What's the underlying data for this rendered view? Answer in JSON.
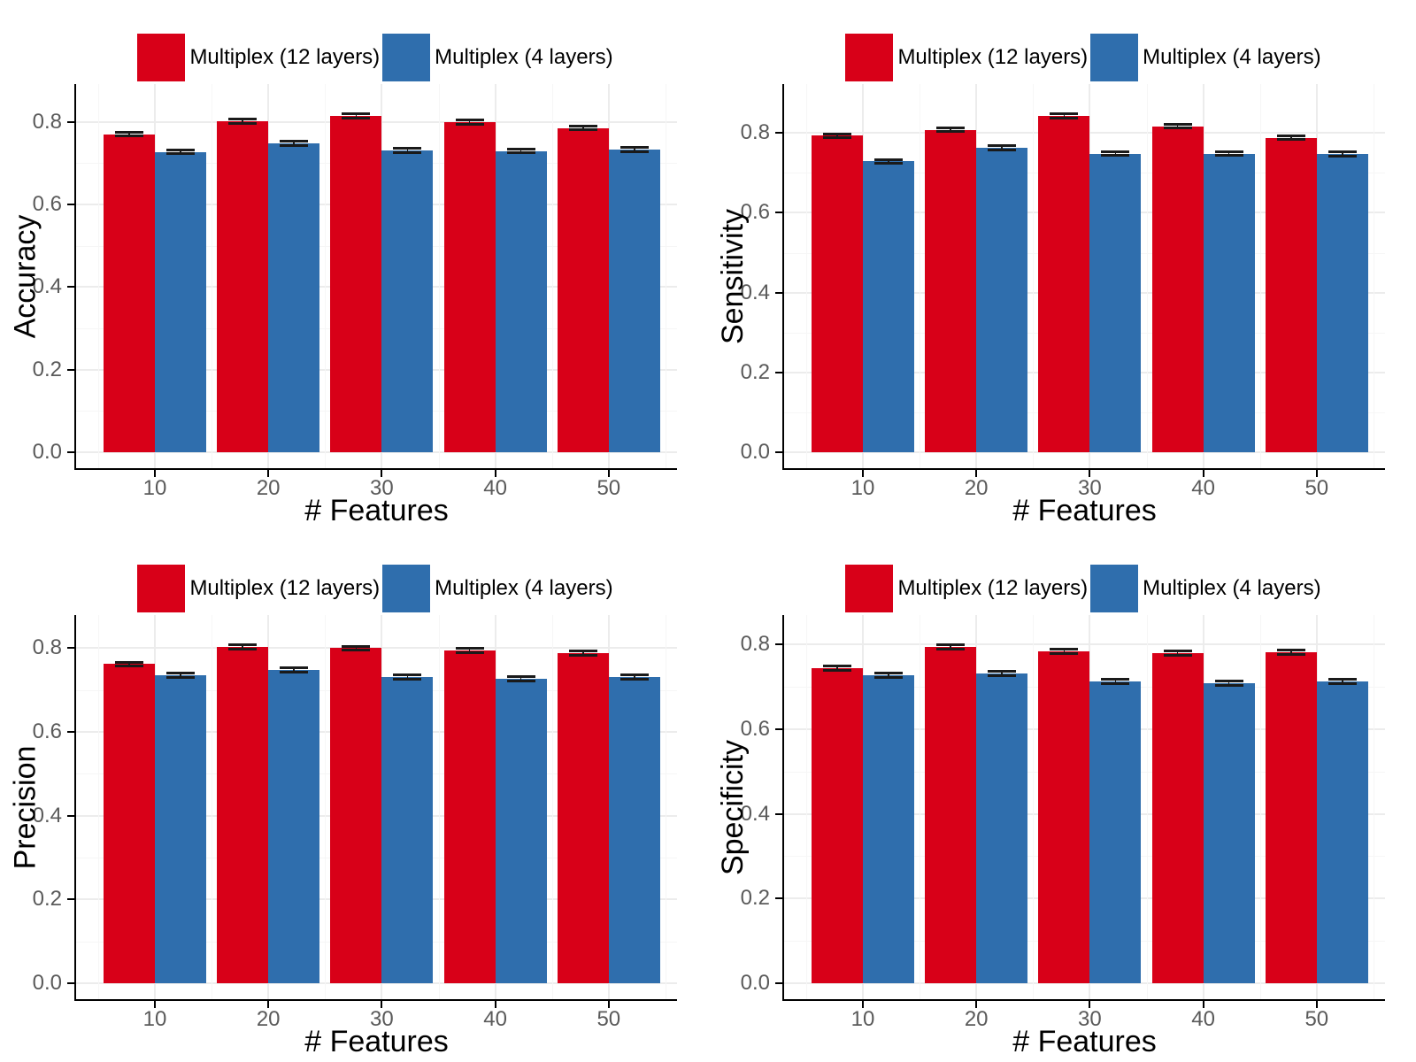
{
  "figure": {
    "background": "#ffffff",
    "axis_line_color": "#000000",
    "axis_text_color": "#5a5a5a",
    "grid_major_color": "#ececec",
    "grid_minor_color": "#f6f6f6",
    "error_bar_color": "#1a1a1a",
    "series_colors": {
      "multiplex_12": "#d80018",
      "multiplex_4": "#2f6ead"
    }
  },
  "legend": {
    "items": [
      {
        "label": "Multiplex (12 layers)",
        "color": "#d80018"
      },
      {
        "label": "Multiplex (4 layers)",
        "color": "#2f6ead"
      }
    ]
  },
  "chart_data": [
    {
      "type": "bar",
      "title": "",
      "xlabel": "# Features",
      "ylabel": "Accuracy",
      "categories": [
        "10",
        "20",
        "30",
        "40",
        "50"
      ],
      "yticks": [
        "0.0",
        "0.2",
        "0.4",
        "0.6",
        "0.8"
      ],
      "ylim": [
        0,
        0.9
      ],
      "grid": true,
      "legend_position": "top",
      "error_value": 0.005,
      "series": [
        {
          "name": "Multiplex (12 layers)",
          "color": "#d80018",
          "values": [
            0.77,
            0.801,
            0.814,
            0.799,
            0.785
          ]
        },
        {
          "name": "Multiplex (4 layers)",
          "color": "#2f6ead",
          "values": [
            0.727,
            0.747,
            0.731,
            0.729,
            0.732
          ]
        }
      ]
    },
    {
      "type": "bar",
      "title": "",
      "xlabel": "# Features",
      "ylabel": "Sensitivity",
      "categories": [
        "10",
        "20",
        "30",
        "40",
        "50"
      ],
      "yticks": [
        "0.0",
        "0.2",
        "0.4",
        "0.6",
        "0.8"
      ],
      "ylim": [
        0,
        0.93
      ],
      "grid": true,
      "legend_position": "top",
      "error_value": 0.005,
      "series": [
        {
          "name": "Multiplex (12 layers)",
          "color": "#d80018",
          "values": [
            0.793,
            0.808,
            0.843,
            0.817,
            0.788
          ]
        },
        {
          "name": "Multiplex (4 layers)",
          "color": "#2f6ead",
          "values": [
            0.729,
            0.763,
            0.748,
            0.748,
            0.747
          ]
        }
      ]
    },
    {
      "type": "bar",
      "title": "",
      "xlabel": "# Features",
      "ylabel": "Precision",
      "categories": [
        "10",
        "20",
        "30",
        "40",
        "50"
      ],
      "yticks": [
        "0.0",
        "0.2",
        "0.4",
        "0.6",
        "0.8"
      ],
      "ylim": [
        0,
        0.88
      ],
      "grid": true,
      "legend_position": "top",
      "error_value": 0.005,
      "series": [
        {
          "name": "Multiplex (12 layers)",
          "color": "#d80018",
          "values": [
            0.762,
            0.803,
            0.8,
            0.794,
            0.788
          ]
        },
        {
          "name": "Multiplex (4 layers)",
          "color": "#2f6ead",
          "values": [
            0.735,
            0.748,
            0.731,
            0.727,
            0.731
          ]
        }
      ]
    },
    {
      "type": "bar",
      "title": "",
      "xlabel": "# Features",
      "ylabel": "Specificity",
      "categories": [
        "10",
        "20",
        "30",
        "40",
        "50"
      ],
      "yticks": [
        "0.0",
        "0.2",
        "0.4",
        "0.6",
        "0.8"
      ],
      "ylim": [
        0,
        0.87
      ],
      "grid": true,
      "legend_position": "top",
      "error_value": 0.005,
      "series": [
        {
          "name": "Multiplex (12 layers)",
          "color": "#d80018",
          "values": [
            0.744,
            0.794,
            0.783,
            0.78,
            0.781
          ]
        },
        {
          "name": "Multiplex (4 layers)",
          "color": "#2f6ead",
          "values": [
            0.727,
            0.732,
            0.712,
            0.709,
            0.713
          ]
        }
      ]
    }
  ]
}
